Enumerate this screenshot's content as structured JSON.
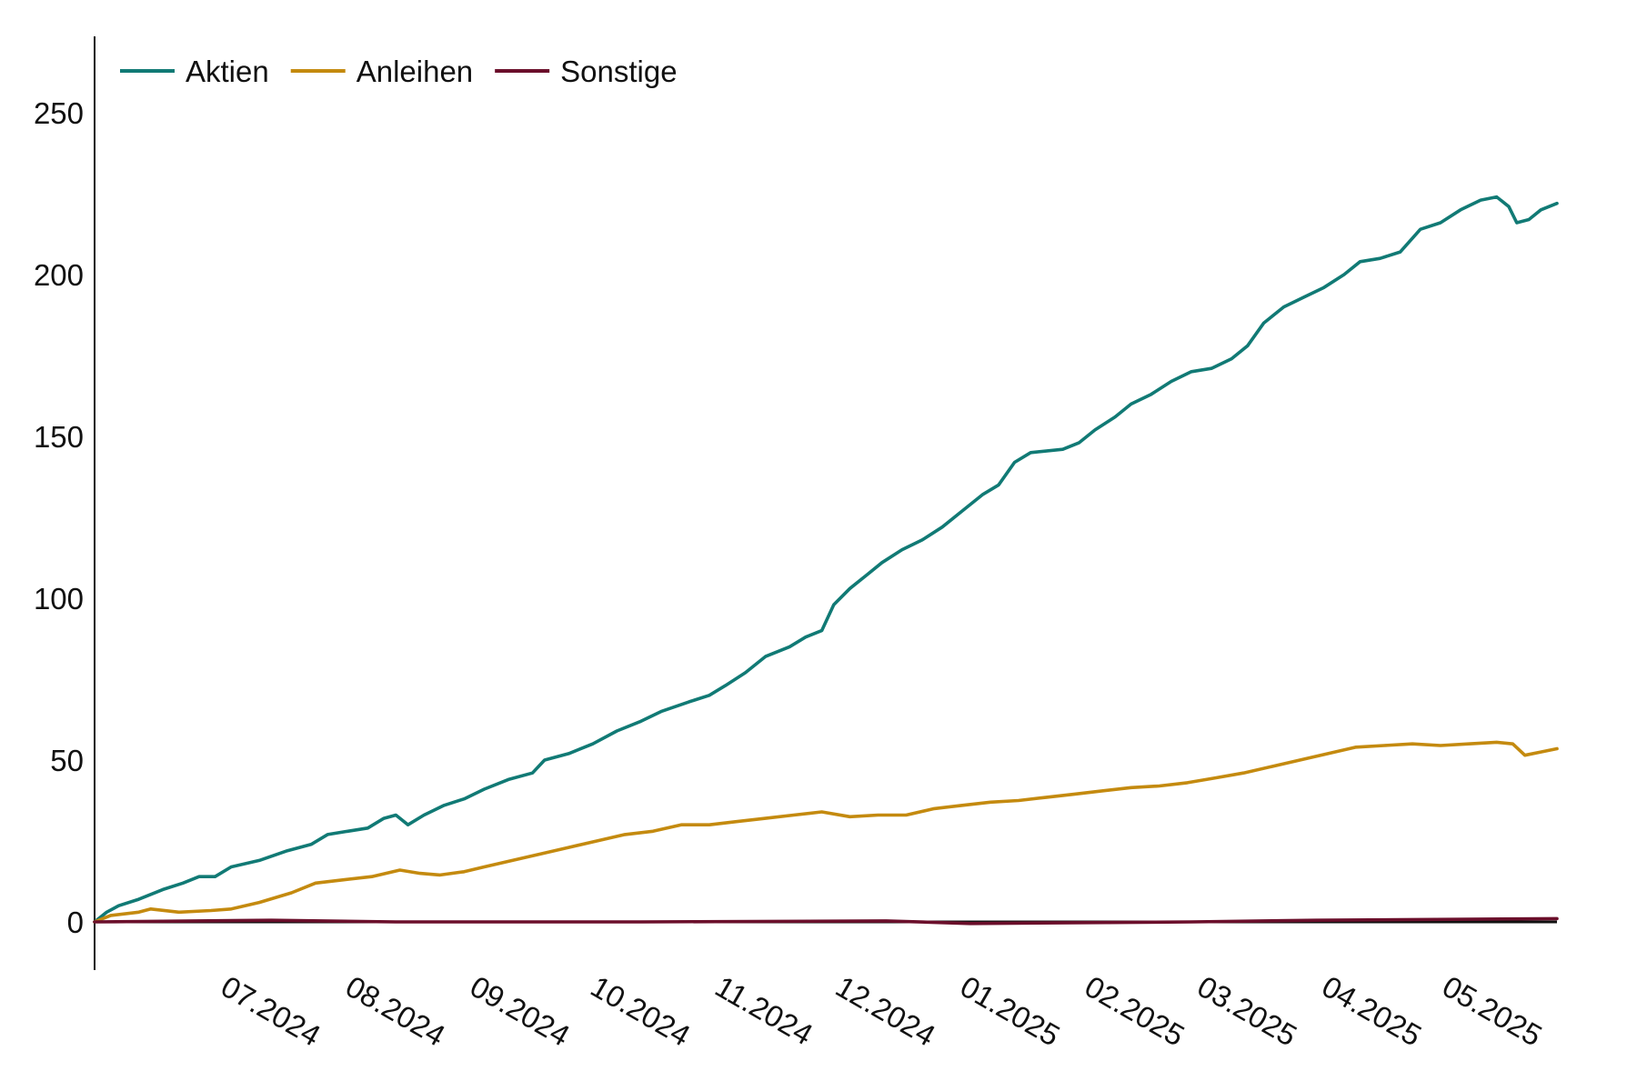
{
  "chart_data": {
    "type": "line",
    "title": "",
    "xlabel": "",
    "ylabel": "",
    "ylim": [
      -15,
      275
    ],
    "yticks": [
      0,
      50,
      100,
      150,
      200,
      250
    ],
    "x_start": "2024-06-01",
    "x_end": "2025-05-31",
    "x_tick_labels": [
      "07.2024",
      "08.2024",
      "09.2024",
      "10.2024",
      "11.2024",
      "12.2024",
      "01.2025",
      "02.2025",
      "03.2025",
      "04.2025",
      "05.2025"
    ],
    "legend": {
      "placement": "top-left"
    },
    "grid": false,
    "series": [
      {
        "name": "Aktien",
        "color": "#117a75",
        "points": [
          [
            "2024-06-01",
            0
          ],
          [
            "2024-06-04",
            3
          ],
          [
            "2024-06-07",
            5
          ],
          [
            "2024-06-12",
            7
          ],
          [
            "2024-06-18",
            10
          ],
          [
            "2024-06-23",
            12
          ],
          [
            "2024-06-27",
            14
          ],
          [
            "2024-07-01",
            14
          ],
          [
            "2024-07-05",
            17
          ],
          [
            "2024-07-12",
            19
          ],
          [
            "2024-07-19",
            22
          ],
          [
            "2024-07-25",
            24
          ],
          [
            "2024-07-29",
            27
          ],
          [
            "2024-08-03",
            28
          ],
          [
            "2024-08-08",
            29
          ],
          [
            "2024-08-12",
            32
          ],
          [
            "2024-08-15",
            33
          ],
          [
            "2024-08-18",
            30
          ],
          [
            "2024-08-22",
            33
          ],
          [
            "2024-08-27",
            36
          ],
          [
            "2024-09-01",
            38
          ],
          [
            "2024-09-06",
            41
          ],
          [
            "2024-09-12",
            44
          ],
          [
            "2024-09-18",
            46
          ],
          [
            "2024-09-21",
            50
          ],
          [
            "2024-09-27",
            52
          ],
          [
            "2024-10-03",
            55
          ],
          [
            "2024-10-09",
            59
          ],
          [
            "2024-10-15",
            62
          ],
          [
            "2024-10-20",
            65
          ],
          [
            "2024-10-27",
            68
          ],
          [
            "2024-11-01",
            70
          ],
          [
            "2024-11-05",
            73
          ],
          [
            "2024-11-10",
            77
          ],
          [
            "2024-11-15",
            82
          ],
          [
            "2024-11-21",
            85
          ],
          [
            "2024-11-25",
            88
          ],
          [
            "2024-11-29",
            90
          ],
          [
            "2024-12-02",
            98
          ],
          [
            "2024-12-06",
            103
          ],
          [
            "2024-12-10",
            107
          ],
          [
            "2024-12-14",
            111
          ],
          [
            "2024-12-19",
            115
          ],
          [
            "2024-12-24",
            118
          ],
          [
            "2024-12-29",
            122
          ],
          [
            "2025-01-03",
            127
          ],
          [
            "2025-01-08",
            132
          ],
          [
            "2025-01-12",
            135
          ],
          [
            "2025-01-16",
            142
          ],
          [
            "2025-01-20",
            145
          ],
          [
            "2025-01-28",
            146
          ],
          [
            "2025-02-01",
            148
          ],
          [
            "2025-02-05",
            152
          ],
          [
            "2025-02-10",
            156
          ],
          [
            "2025-02-14",
            160
          ],
          [
            "2025-02-19",
            163
          ],
          [
            "2025-02-24",
            167
          ],
          [
            "2025-03-01",
            170
          ],
          [
            "2025-03-06",
            171
          ],
          [
            "2025-03-11",
            174
          ],
          [
            "2025-03-15",
            178
          ],
          [
            "2025-03-19",
            185
          ],
          [
            "2025-03-24",
            190
          ],
          [
            "2025-03-29",
            193
          ],
          [
            "2025-04-03",
            196
          ],
          [
            "2025-04-08",
            200
          ],
          [
            "2025-04-12",
            204
          ],
          [
            "2025-04-17",
            205
          ],
          [
            "2025-04-22",
            207
          ],
          [
            "2025-04-27",
            214
          ],
          [
            "2025-05-02",
            216
          ],
          [
            "2025-05-07",
            220
          ],
          [
            "2025-05-12",
            223
          ],
          [
            "2025-05-16",
            224
          ],
          [
            "2025-05-19",
            221
          ],
          [
            "2025-05-21",
            216
          ],
          [
            "2025-05-24",
            217
          ],
          [
            "2025-05-27",
            220
          ],
          [
            "2025-05-31",
            222
          ]
        ]
      },
      {
        "name": "Anleihen",
        "color": "#c48a0f",
        "points": [
          [
            "2024-06-01",
            0
          ],
          [
            "2024-06-05",
            2
          ],
          [
            "2024-06-12",
            3
          ],
          [
            "2024-06-15",
            4
          ],
          [
            "2024-06-22",
            3
          ],
          [
            "2024-06-30",
            3.5
          ],
          [
            "2024-07-05",
            4
          ],
          [
            "2024-07-12",
            6
          ],
          [
            "2024-07-20",
            9
          ],
          [
            "2024-07-26",
            12
          ],
          [
            "2024-08-02",
            13
          ],
          [
            "2024-08-09",
            14
          ],
          [
            "2024-08-16",
            16
          ],
          [
            "2024-08-21",
            15
          ],
          [
            "2024-08-26",
            14.5
          ],
          [
            "2024-09-01",
            15.5
          ],
          [
            "2024-09-06",
            17
          ],
          [
            "2024-09-13",
            19
          ],
          [
            "2024-09-20",
            21
          ],
          [
            "2024-09-27",
            23
          ],
          [
            "2024-10-04",
            25
          ],
          [
            "2024-10-11",
            27
          ],
          [
            "2024-10-18",
            28
          ],
          [
            "2024-10-25",
            30
          ],
          [
            "2024-11-01",
            30
          ],
          [
            "2024-11-08",
            31
          ],
          [
            "2024-11-15",
            32
          ],
          [
            "2024-11-22",
            33
          ],
          [
            "2024-11-29",
            34
          ],
          [
            "2024-12-06",
            32.5
          ],
          [
            "2024-12-13",
            33
          ],
          [
            "2024-12-20",
            33
          ],
          [
            "2024-12-27",
            35
          ],
          [
            "2025-01-03",
            36
          ],
          [
            "2025-01-10",
            37
          ],
          [
            "2025-01-17",
            37.5
          ],
          [
            "2025-01-24",
            38.5
          ],
          [
            "2025-01-31",
            39.5
          ],
          [
            "2025-02-07",
            40.5
          ],
          [
            "2025-02-14",
            41.5
          ],
          [
            "2025-02-21",
            42
          ],
          [
            "2025-02-28",
            43
          ],
          [
            "2025-03-07",
            44.5
          ],
          [
            "2025-03-14",
            46
          ],
          [
            "2025-03-21",
            48
          ],
          [
            "2025-03-28",
            50
          ],
          [
            "2025-04-04",
            52
          ],
          [
            "2025-04-11",
            54
          ],
          [
            "2025-04-18",
            54.5
          ],
          [
            "2025-04-25",
            55
          ],
          [
            "2025-05-02",
            54.5
          ],
          [
            "2025-05-09",
            55
          ],
          [
            "2025-05-16",
            55.5
          ],
          [
            "2025-05-20",
            55
          ],
          [
            "2025-05-23",
            51.5
          ],
          [
            "2025-05-27",
            52.5
          ],
          [
            "2025-05-31",
            53.5
          ]
        ]
      },
      {
        "name": "Sonstige",
        "color": "#6b0f2b",
        "points": [
          [
            "2024-06-01",
            0
          ],
          [
            "2024-07-15",
            0.5
          ],
          [
            "2024-08-15",
            0
          ],
          [
            "2024-10-15",
            0
          ],
          [
            "2024-12-15",
            0.3
          ],
          [
            "2025-01-05",
            -0.5
          ],
          [
            "2025-03-01",
            0
          ],
          [
            "2025-04-01",
            0.5
          ],
          [
            "2025-05-31",
            1
          ]
        ]
      }
    ]
  }
}
